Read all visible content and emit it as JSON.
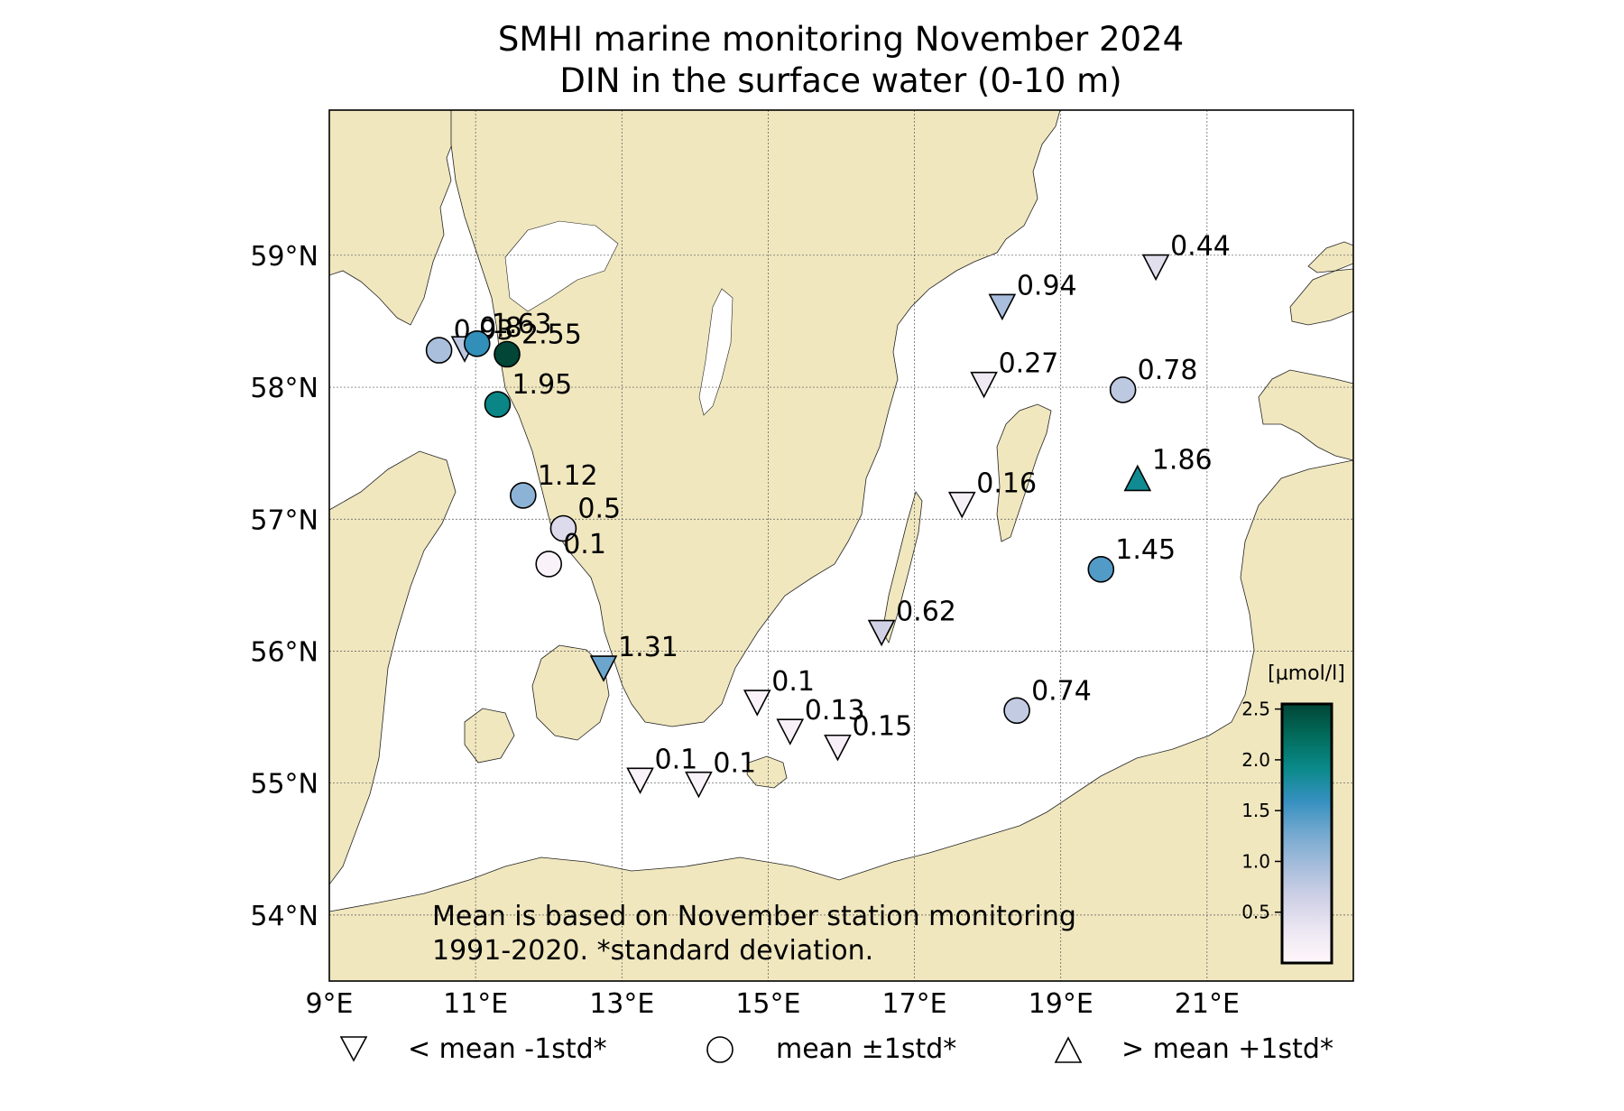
{
  "title": {
    "line1": "SMHI marine monitoring November 2024",
    "line2": "DIN in the surface water (0-10 m)"
  },
  "map": {
    "lon_range": [
      9,
      23
    ],
    "lat_range": [
      53.5,
      60.1
    ],
    "lon_ticks": [
      {
        "value": 9,
        "label": "9°E"
      },
      {
        "value": 11,
        "label": "11°E"
      },
      {
        "value": 13,
        "label": "13°E"
      },
      {
        "value": 15,
        "label": "15°E"
      },
      {
        "value": 17,
        "label": "17°E"
      },
      {
        "value": 19,
        "label": "19°E"
      },
      {
        "value": 21,
        "label": "21°E"
      }
    ],
    "lat_ticks": [
      {
        "value": 54,
        "label": "54°N"
      },
      {
        "value": 55,
        "label": "55°N"
      },
      {
        "value": 56,
        "label": "56°N"
      },
      {
        "value": 57,
        "label": "57°N"
      },
      {
        "value": 58,
        "label": "58°N"
      },
      {
        "value": 59,
        "label": "59°N"
      }
    ],
    "land_color": "#f0e7bf",
    "sea_color": "#ffffff"
  },
  "stations": [
    {
      "lon": 10.5,
      "lat": 58.28,
      "value": "0.93",
      "v": 0.93,
      "marker": "circle"
    },
    {
      "lon": 10.85,
      "lat": 58.3,
      "value": "0.8",
      "v": 0.8,
      "marker": "triangle-down"
    },
    {
      "lon": 11.02,
      "lat": 58.33,
      "value": "1.63",
      "v": 1.63,
      "marker": "circle"
    },
    {
      "lon": 11.43,
      "lat": 58.25,
      "value": "2.55",
      "v": 2.55,
      "marker": "circle"
    },
    {
      "lon": 11.3,
      "lat": 57.87,
      "value": "1.95",
      "v": 1.95,
      "marker": "circle"
    },
    {
      "lon": 11.65,
      "lat": 57.18,
      "value": "1.12",
      "v": 1.12,
      "marker": "circle"
    },
    {
      "lon": 12.2,
      "lat": 56.93,
      "value": "0.5",
      "v": 0.5,
      "marker": "circle"
    },
    {
      "lon": 12.0,
      "lat": 56.66,
      "value": "0.1",
      "v": 0.1,
      "marker": "circle"
    },
    {
      "lon": 12.75,
      "lat": 55.88,
      "value": "1.31",
      "v": 1.31,
      "marker": "triangle-down"
    },
    {
      "lon": 13.25,
      "lat": 55.03,
      "value": "0.1",
      "v": 0.1,
      "marker": "triangle-down"
    },
    {
      "lon": 14.05,
      "lat": 55.0,
      "value": "0.1",
      "v": 0.1,
      "marker": "triangle-down"
    },
    {
      "lon": 14.85,
      "lat": 55.62,
      "value": "0.1",
      "v": 0.1,
      "marker": "triangle-down"
    },
    {
      "lon": 15.3,
      "lat": 55.4,
      "value": "0.13",
      "v": 0.13,
      "marker": "triangle-down"
    },
    {
      "lon": 15.95,
      "lat": 55.28,
      "value": "0.15",
      "v": 0.15,
      "marker": "triangle-down"
    },
    {
      "lon": 16.55,
      "lat": 56.15,
      "value": "0.62",
      "v": 0.62,
      "marker": "triangle-down"
    },
    {
      "lon": 18.4,
      "lat": 55.55,
      "value": "0.74",
      "v": 0.74,
      "marker": "circle"
    },
    {
      "lon": 17.65,
      "lat": 57.12,
      "value": "0.16",
      "v": 0.16,
      "marker": "triangle-down"
    },
    {
      "lon": 17.95,
      "lat": 58.03,
      "value": "0.27",
      "v": 0.27,
      "marker": "triangle-down"
    },
    {
      "lon": 18.2,
      "lat": 58.62,
      "value": "0.94",
      "v": 0.94,
      "marker": "triangle-down"
    },
    {
      "lon": 20.3,
      "lat": 58.92,
      "value": "0.44",
      "v": 0.44,
      "marker": "triangle-down"
    },
    {
      "lon": 19.85,
      "lat": 57.98,
      "value": "0.78",
      "v": 0.78,
      "marker": "circle"
    },
    {
      "lon": 20.05,
      "lat": 57.3,
      "value": "1.86",
      "v": 1.86,
      "marker": "triangle-up"
    },
    {
      "lon": 19.55,
      "lat": 56.62,
      "value": "1.45",
      "v": 1.45,
      "marker": "circle"
    }
  ],
  "colorbar": {
    "unit": "[µmol/l]",
    "min": 0.0,
    "max": 2.55,
    "ticks": [
      {
        "value": 0.5,
        "label": "0.5"
      },
      {
        "value": 1.0,
        "label": "1.0"
      },
      {
        "value": 1.5,
        "label": "1.5"
      },
      {
        "value": 2.0,
        "label": "2.0"
      },
      {
        "value": 2.5,
        "label": "2.5"
      }
    ],
    "stops": [
      "#fff7fb",
      "#ece7f2",
      "#d0d1e6",
      "#a6bddb",
      "#74a9cf",
      "#3690c0",
      "#0a8a8a",
      "#026c5c",
      "#014636"
    ]
  },
  "note": {
    "line1": "Mean is based on November station monitoring",
    "line2": "1991-2020. *standard deviation."
  },
  "legend": [
    {
      "marker": "triangle-down",
      "label": "< mean -1std*"
    },
    {
      "marker": "circle",
      "label": "mean ±1std*"
    },
    {
      "marker": "triangle-up",
      "label": "> mean +1std*"
    }
  ]
}
